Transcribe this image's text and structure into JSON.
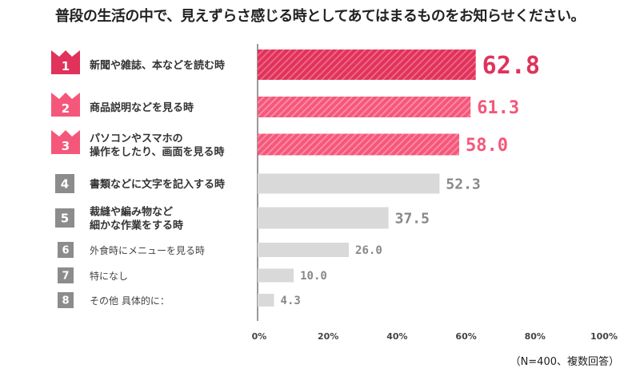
{
  "chart_data": {
    "type": "bar",
    "orientation": "horizontal",
    "title": "普段の生活の中で、見えずらさ感じる時としてあてはまるものをお知らせください。",
    "note": "（N=400、複数回答）",
    "xlim": [
      0,
      100
    ],
    "x_ticks": [
      "0%",
      "20%",
      "40%",
      "60%",
      "80%",
      "100%"
    ],
    "categories": [
      {
        "rank": "1",
        "lines": [
          "新聞や雑誌、本などを読む時"
        ]
      },
      {
        "rank": "2",
        "lines": [
          "商品説明などを見る時"
        ]
      },
      {
        "rank": "3",
        "lines": [
          "パソコンやスマホの",
          "操作をしたり、画面を見る時"
        ]
      },
      {
        "rank": "4",
        "lines": [
          "書類などに文字を記入する時"
        ]
      },
      {
        "rank": "5",
        "lines": [
          "裁縫や編み物など",
          "細かな作業をする時"
        ]
      },
      {
        "rank": "6",
        "lines": [
          "外食時にメニューを見る時"
        ]
      },
      {
        "rank": "7",
        "lines": [
          "特になし"
        ]
      },
      {
        "rank": "8",
        "lines": [
          "その他 具体的に："
        ]
      }
    ],
    "values": [
      62.8,
      61.3,
      58.0,
      52.3,
      37.5,
      26.0,
      10.0,
      4.3
    ],
    "value_labels": [
      "62.8",
      "61.3",
      "58.0",
      "52.3",
      "37.5",
      "26.0",
      "10.0",
      "4.3"
    ],
    "colors": {
      "top1": "#e0325a",
      "top": "#f5577a",
      "rest": "#d9d9d9",
      "badge_gray": "#8c8c8c",
      "label_gray": "#888888"
    }
  }
}
